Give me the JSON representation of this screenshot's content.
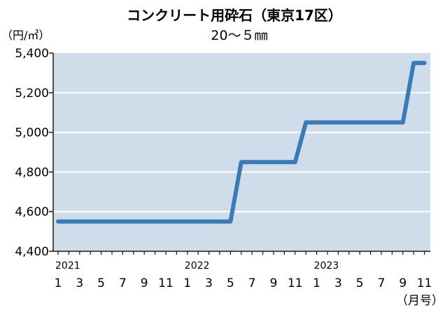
{
  "chart_data": {
    "type": "line",
    "title": "コンクリート用砕石（東京17区）",
    "subtitle": "20～５㎜",
    "ylabel": "（円/㎥）",
    "xlabel": "（月号）",
    "ylim": [
      4400,
      5400
    ],
    "y_ticks": [
      4400,
      4600,
      4800,
      5000,
      5200,
      5400
    ],
    "y_tick_labels": [
      "4,400",
      "4,600",
      "4,800",
      "5,000",
      "5,200",
      "5,400"
    ],
    "x_year_labels": [
      {
        "label": "2021",
        "index": 0
      },
      {
        "label": "2022",
        "index": 12
      },
      {
        "label": "2023",
        "index": 24
      }
    ],
    "x_month_labels": [
      {
        "label": "1",
        "index": 0
      },
      {
        "label": "3",
        "index": 2
      },
      {
        "label": "5",
        "index": 4
      },
      {
        "label": "7",
        "index": 6
      },
      {
        "label": "9",
        "index": 8
      },
      {
        "label": "11",
        "index": 10
      },
      {
        "label": "1",
        "index": 12
      },
      {
        "label": "3",
        "index": 14
      },
      {
        "label": "5",
        "index": 16
      },
      {
        "label": "7",
        "index": 18
      },
      {
        "label": "9",
        "index": 20
      },
      {
        "label": "11",
        "index": 22
      },
      {
        "label": "1",
        "index": 24
      },
      {
        "label": "3",
        "index": 26
      },
      {
        "label": "5",
        "index": 28
      },
      {
        "label": "7",
        "index": 30
      },
      {
        "label": "9",
        "index": 32
      },
      {
        "label": "11",
        "index": 34
      }
    ],
    "months_count": 35,
    "series": [
      {
        "values": [
          4550,
          4550,
          4550,
          4550,
          4550,
          4550,
          4550,
          4550,
          4550,
          4550,
          4550,
          4550,
          4550,
          4550,
          4550,
          4550,
          4550,
          4850,
          4850,
          4850,
          4850,
          4850,
          4850,
          5050,
          5050,
          5050,
          5050,
          5050,
          5050,
          5050,
          5050,
          5050,
          5050,
          5350,
          5350
        ]
      }
    ],
    "grid": true,
    "colors": {
      "plot_bg": "#cfdcea",
      "line": "#3a7ab5",
      "grid": "#ffffff"
    }
  }
}
